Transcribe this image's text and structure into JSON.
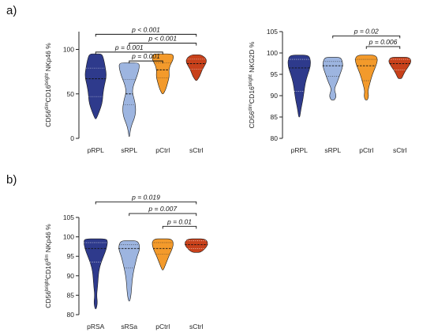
{
  "chart_data": [
    {
      "type": "violin",
      "panel_label": "a)",
      "ylabel": "CD56dimCD16bright NKp46 %",
      "ylabel_parts": [
        {
          "text": "CD56",
          "sup": false
        },
        {
          "text": "dim",
          "sup": true
        },
        {
          "text": "CD16",
          "sup": false
        },
        {
          "text": "bright",
          "sup": true
        },
        {
          "text": " NKp46 %",
          "sup": false
        }
      ],
      "ylim": [
        0,
        120
      ],
      "yticks": [
        0,
        50,
        100
      ],
      "categories": [
        "pRPL",
        "sRPL",
        "pCtrl",
        "sCtrl"
      ],
      "series": [
        {
          "category": "pRPL",
          "min": 22,
          "max": 95,
          "median": 67,
          "q1": 47,
          "q3": 79,
          "color": "#2e3a8c",
          "profile": [
            [
              22,
              0.05
            ],
            [
              30,
              0.3
            ],
            [
              40,
              0.55
            ],
            [
              50,
              0.6
            ],
            [
              60,
              0.72
            ],
            [
              70,
              0.9
            ],
            [
              80,
              0.8
            ],
            [
              90,
              0.65
            ],
            [
              95,
              0.5
            ]
          ]
        },
        {
          "category": "sRPL",
          "min": 2,
          "max": 85,
          "median": 50,
          "q1": 38,
          "q3": 66,
          "color": "#9db5e0",
          "profile": [
            [
              2,
              0.03
            ],
            [
              8,
              0.08
            ],
            [
              15,
              0.2
            ],
            [
              25,
              0.5
            ],
            [
              35,
              0.55
            ],
            [
              45,
              0.4
            ],
            [
              52,
              0.25
            ],
            [
              60,
              0.35
            ],
            [
              70,
              0.65
            ],
            [
              80,
              0.85
            ],
            [
              85,
              0.8
            ]
          ]
        },
        {
          "category": "pCtrl",
          "min": 50,
          "max": 95,
          "median": 77,
          "q1": 68,
          "q3": 85,
          "color": "#f39a2b",
          "profile": [
            [
              50,
              0.05
            ],
            [
              55,
              0.25
            ],
            [
              62,
              0.4
            ],
            [
              70,
              0.55
            ],
            [
              76,
              0.5
            ],
            [
              82,
              0.6
            ],
            [
              88,
              0.85
            ],
            [
              93,
              0.9
            ],
            [
              95,
              0.7
            ]
          ]
        },
        {
          "category": "sCtrl",
          "min": 65,
          "max": 94,
          "median": 84,
          "q1": 78,
          "q3": 89,
          "color": "#c8411b",
          "profile": [
            [
              65,
              0.05
            ],
            [
              70,
              0.3
            ],
            [
              76,
              0.45
            ],
            [
              82,
              0.7
            ],
            [
              86,
              0.85
            ],
            [
              90,
              0.8
            ],
            [
              94,
              0.4
            ]
          ]
        }
      ],
      "annotations": [
        {
          "from": "pRPL",
          "to": "sCtrl",
          "text": "p < 0.001",
          "y": 117
        },
        {
          "from": "sRPL",
          "to": "sCtrl",
          "text": "p < 0.001",
          "y": 107
        },
        {
          "from": "pRPL",
          "to": "pCtrl",
          "text": "p = 0.001",
          "y": 97
        },
        {
          "from": "sRPL",
          "to": "pCtrl",
          "text": "p = 0.001",
          "y": 87
        }
      ]
    },
    {
      "type": "violin",
      "panel_label": "",
      "ylabel": "CD56dimCD16bright NKG2D %",
      "ylabel_parts": [
        {
          "text": "CD56",
          "sup": false
        },
        {
          "text": "dim",
          "sup": true
        },
        {
          "text": "CD16",
          "sup": false
        },
        {
          "text": "bright",
          "sup": true
        },
        {
          "text": " NKG2D %",
          "sup": false
        }
      ],
      "ylim": [
        80,
        105
      ],
      "yticks": [
        80,
        85,
        90,
        95,
        100,
        105
      ],
      "categories": [
        "pRPL",
        "sRPL",
        "pCtrl",
        "sCtrl"
      ],
      "series": [
        {
          "category": "pRPL",
          "min": 85,
          "max": 99.5,
          "median": 96.5,
          "q1": 91,
          "q3": 98.5,
          "color": "#2e3a8c",
          "profile": [
            [
              85,
              0.05
            ],
            [
              87,
              0.15
            ],
            [
              89,
              0.3
            ],
            [
              91,
              0.4
            ],
            [
              93,
              0.5
            ],
            [
              95,
              0.7
            ],
            [
              97,
              0.95
            ],
            [
              99,
              0.9
            ],
            [
              99.5,
              0.6
            ]
          ]
        },
        {
          "category": "sRPL",
          "min": 89,
          "max": 99,
          "median": 97,
          "q1": 94.5,
          "q3": 98,
          "color": "#9db5e0",
          "profile": [
            [
              89,
              0.15
            ],
            [
              90,
              0.3
            ],
            [
              91.5,
              0.1
            ],
            [
              93,
              0.35
            ],
            [
              95,
              0.6
            ],
            [
              97,
              0.85
            ],
            [
              98.5,
              0.75
            ],
            [
              99,
              0.55
            ]
          ]
        },
        {
          "category": "pCtrl",
          "min": 89,
          "max": 99.5,
          "median": 97,
          "q1": 93.5,
          "q3": 98.5,
          "color": "#f39a2b",
          "profile": [
            [
              89,
              0.1
            ],
            [
              90,
              0.2
            ],
            [
              91,
              0.12
            ],
            [
              93,
              0.3
            ],
            [
              95,
              0.5
            ],
            [
              97,
              0.8
            ],
            [
              98.5,
              0.95
            ],
            [
              99.5,
              0.75
            ]
          ]
        },
        {
          "category": "sCtrl",
          "min": 94,
          "max": 99,
          "median": 97.5,
          "q1": 96,
          "q3": 98.5,
          "color": "#c8411b",
          "profile": [
            [
              94,
              0.15
            ],
            [
              95,
              0.3
            ],
            [
              96,
              0.5
            ],
            [
              97,
              0.75
            ],
            [
              98,
              0.95
            ],
            [
              99,
              0.8
            ]
          ]
        }
      ],
      "annotations": [
        {
          "from": "sRPL",
          "to": "sCtrl",
          "text": "p = 0.02",
          "y": 104
        },
        {
          "from": "pCtrl",
          "to": "sCtrl",
          "text": "p = 0.006",
          "y": 101.5
        }
      ]
    },
    {
      "type": "violin",
      "panel_label": "b)",
      "ylabel": "CD56brightCD16dim NKp46 %",
      "ylabel_parts": [
        {
          "text": "CD56",
          "sup": false
        },
        {
          "text": "bright",
          "sup": true
        },
        {
          "text": "CD16",
          "sup": false
        },
        {
          "text": "dim",
          "sup": true
        },
        {
          "text": " NKp46 %",
          "sup": false
        }
      ],
      "ylim": [
        80,
        105
      ],
      "yticks": [
        80,
        85,
        90,
        95,
        100,
        105
      ],
      "categories": [
        "pRSA",
        "sRSa",
        "pCtrl",
        "sCtrl"
      ],
      "series": [
        {
          "category": "pRSA",
          "min": 81.5,
          "max": 99.5,
          "median": 97,
          "q1": 93.5,
          "q3": 98.5,
          "color": "#2e3a8c",
          "profile": [
            [
              81.5,
              0.05
            ],
            [
              83,
              0.15
            ],
            [
              85,
              0.08
            ],
            [
              87,
              0.15
            ],
            [
              89,
              0.2
            ],
            [
              91,
              0.25
            ],
            [
              93,
              0.4
            ],
            [
              95,
              0.65
            ],
            [
              97,
              0.9
            ],
            [
              99,
              1.0
            ],
            [
              99.5,
              0.8
            ]
          ]
        },
        {
          "category": "sRSa",
          "min": 83.5,
          "max": 99,
          "median": 97,
          "q1": 92,
          "q3": 98,
          "color": "#9db5e0",
          "profile": [
            [
              83.5,
              0.05
            ],
            [
              85,
              0.15
            ],
            [
              87,
              0.2
            ],
            [
              89,
              0.25
            ],
            [
              91,
              0.35
            ],
            [
              93,
              0.5
            ],
            [
              95,
              0.65
            ],
            [
              97,
              0.9
            ],
            [
              99,
              0.75
            ]
          ]
        },
        {
          "category": "pCtrl",
          "min": 91.5,
          "max": 99.5,
          "median": 97,
          "q1": 95.5,
          "q3": 98.5,
          "color": "#f39a2b",
          "profile": [
            [
              91.5,
              0.05
            ],
            [
              93,
              0.25
            ],
            [
              95,
              0.5
            ],
            [
              97,
              0.8
            ],
            [
              98.5,
              0.9
            ],
            [
              99.5,
              0.7
            ]
          ]
        },
        {
          "category": "sCtrl",
          "min": 96,
          "max": 99.5,
          "median": 98,
          "q1": 97,
          "q3": 99,
          "color": "#c8411b",
          "profile": [
            [
              96,
              0.35
            ],
            [
              97,
              0.75
            ],
            [
              98,
              0.95
            ],
            [
              99,
              0.9
            ],
            [
              99.5,
              0.6
            ]
          ]
        }
      ],
      "annotations": [
        {
          "from": "pRSA",
          "to": "sCtrl",
          "text": "p = 0.019",
          "y": 109
        },
        {
          "from": "sRSa",
          "to": "sCtrl",
          "text": "p = 0.007",
          "y": 106
        },
        {
          "from": "pCtrl",
          "to": "sCtrl",
          "text": "p = 0.01",
          "y": 102.7
        }
      ]
    }
  ]
}
